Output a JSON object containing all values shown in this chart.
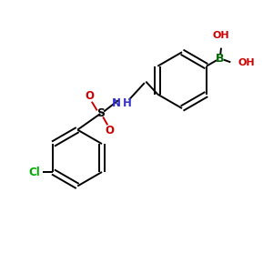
{
  "background_color": "#ffffff",
  "bond_color": "#000000",
  "atom_colors": {
    "Cl": "#00aa00",
    "S": "#000000",
    "O": "#cc0000",
    "N": "#3333cc",
    "B": "#006600",
    "C": "#000000"
  },
  "figsize": [
    3.0,
    3.0
  ],
  "dpi": 100,
  "xlim": [
    0,
    10
  ],
  "ylim": [
    0,
    10
  ]
}
